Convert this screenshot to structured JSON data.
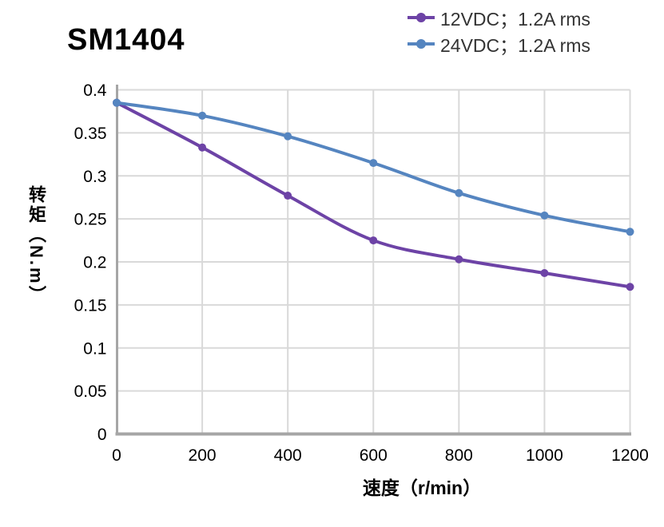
{
  "title": "SM1404",
  "chart_data": {
    "type": "line",
    "title": "SM1404",
    "x": [
      0,
      200,
      400,
      600,
      800,
      1000,
      1200
    ],
    "series": [
      {
        "name": "12VDC；1.2A rms",
        "color": "#6d43a6",
        "values": [
          0.385,
          0.333,
          0.277,
          0.225,
          0.203,
          0.187,
          0.171
        ]
      },
      {
        "name": "24VDC；1.2A rms",
        "color": "#5585c0",
        "values": [
          0.385,
          0.37,
          0.346,
          0.315,
          0.28,
          0.254,
          0.235
        ]
      }
    ],
    "xlabel": "速度（r/min）",
    "ylabel": "转矩（N.m）",
    "xlim": [
      0,
      1200
    ],
    "ylim": [
      0,
      0.4
    ],
    "xtick_labels": [
      "0",
      "200",
      "400",
      "600",
      "800",
      "1000",
      "1200"
    ],
    "ytick_labels": [
      "0",
      "0.05",
      "0.1",
      "0.15",
      "0.2",
      "0.25",
      "0.3",
      "0.35",
      "0.4"
    ],
    "grid": true,
    "legend_position": "top-right",
    "line_style": "smooth",
    "marker": "circle"
  },
  "styles": {
    "gridline_color": "#d9d9d9",
    "axis_color": "#a6a6a6",
    "tick_text_color": "#000000",
    "legend_text_color": "#333333",
    "background": "#ffffff"
  }
}
